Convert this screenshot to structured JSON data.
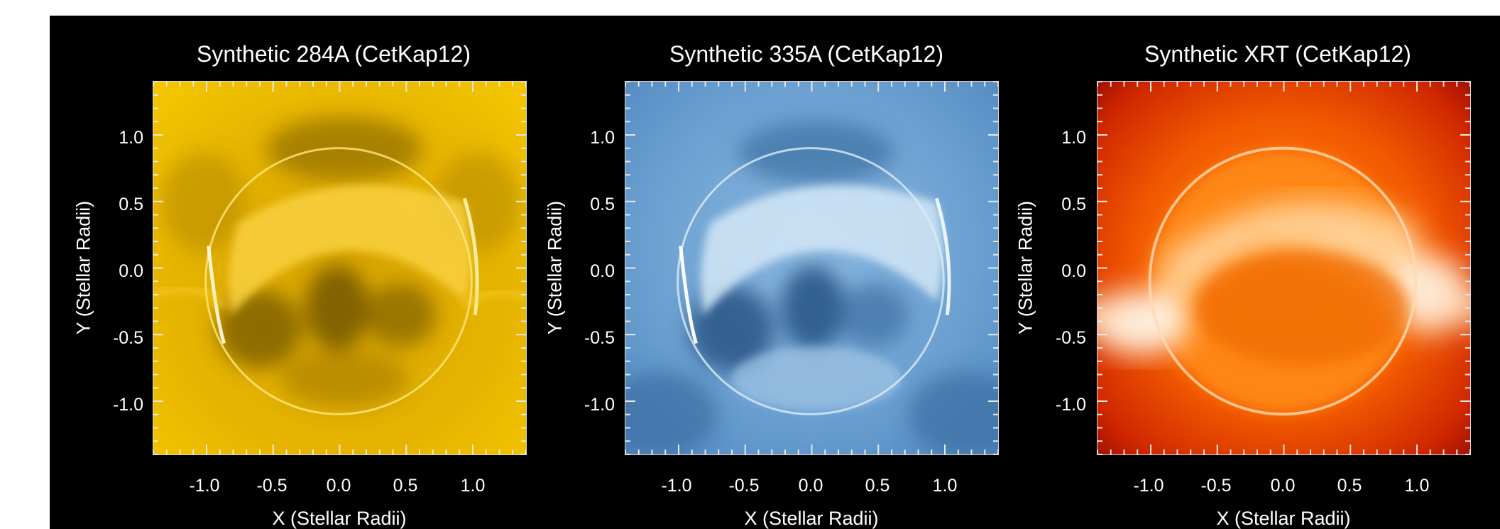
{
  "panels": [
    {
      "title": "Synthetic 284A (CetKap12)",
      "xlabel": "X (Stellar Radii)",
      "ylabel": "Y (Stellar Radii)",
      "colormap": "yellow"
    },
    {
      "title": "Synthetic 335A (CetKap12)",
      "xlabel": "X (Stellar Radii)",
      "ylabel": "Y (Stellar Radii)",
      "colormap": "blue"
    },
    {
      "title": "Synthetic XRT (CetKap12)",
      "xlabel": "X (Stellar Radii)",
      "ylabel": "Y (Stellar Radii)",
      "colormap": "red-orange"
    }
  ],
  "axes": {
    "xticks": [
      "-1.0",
      "-0.5",
      "0.0",
      "0.5",
      "1.0"
    ],
    "yticks": [
      "1.0",
      "0.5",
      "0.0",
      "-0.5",
      "-1.0"
    ]
  },
  "colors": {
    "yellow": [
      "#5e4700",
      "#b88a00",
      "#f0c000",
      "#ffe070",
      "#fffbe8"
    ],
    "blue": [
      "#1f4f7d",
      "#3f78ad",
      "#6ea3d2",
      "#b9d6ee",
      "#f4f9ff"
    ],
    "red-orange": [
      "#9c1000",
      "#e04000",
      "#ff7a10",
      "#ffb060",
      "#fff4e4"
    ]
  }
}
